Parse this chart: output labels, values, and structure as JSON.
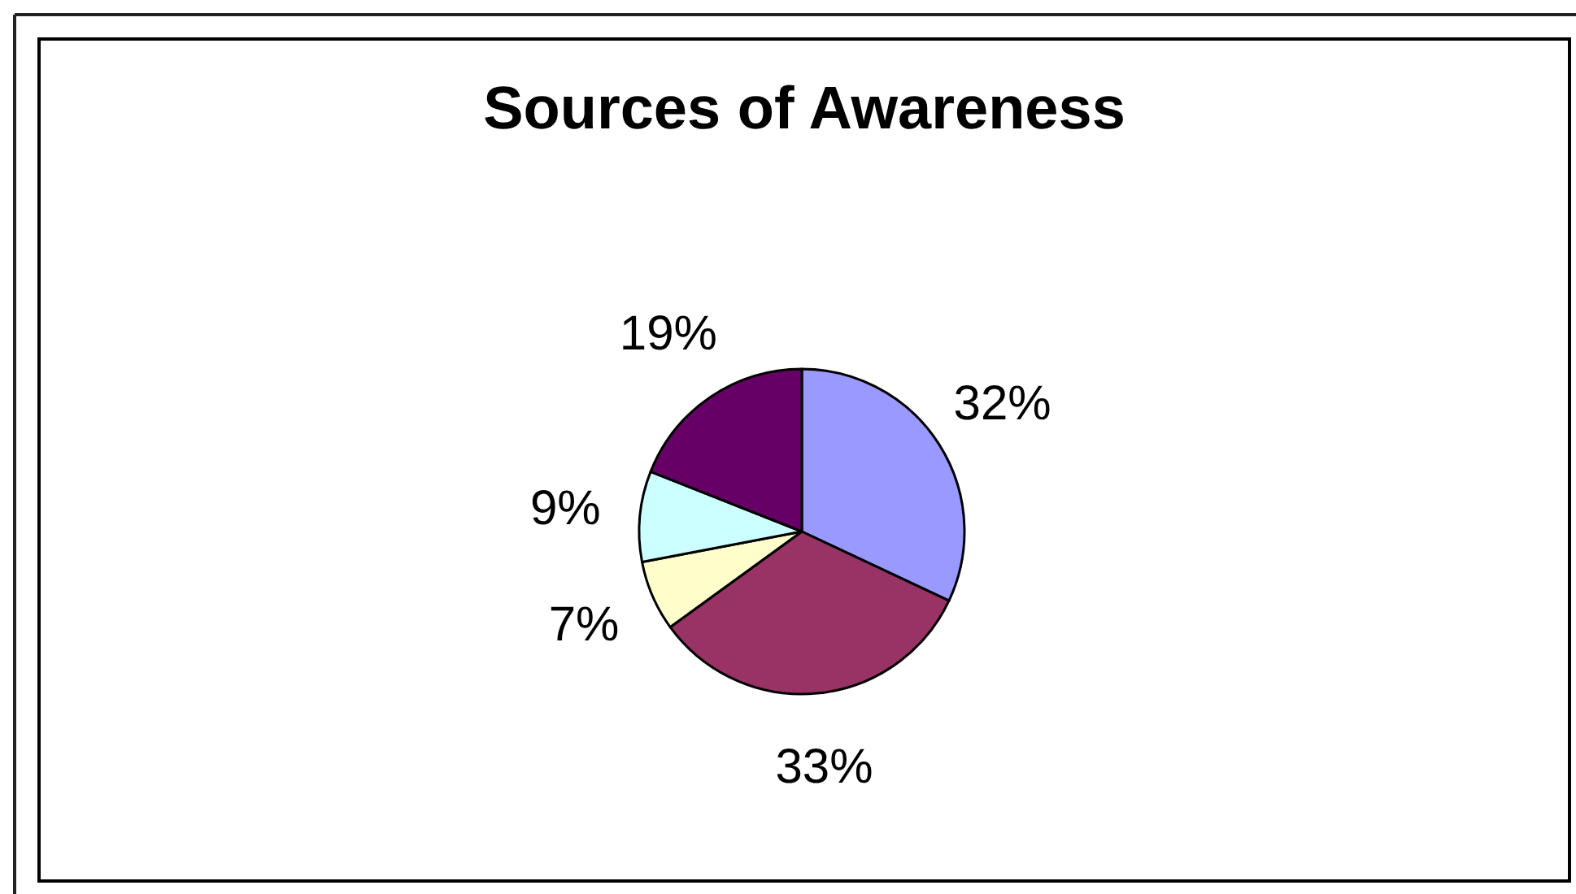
{
  "chart_data": {
    "type": "pie",
    "title": "Sources of Awareness",
    "categories": [
      null,
      null,
      null,
      null,
      null
    ],
    "values": [
      32,
      33,
      7,
      9,
      19
    ],
    "colors": [
      "#9999ff",
      "#993366",
      "#ffffcc",
      "#ccffff",
      "#660066"
    ],
    "value_labels": [
      "32%",
      "33%",
      "7%",
      "9%",
      "19%"
    ]
  }
}
